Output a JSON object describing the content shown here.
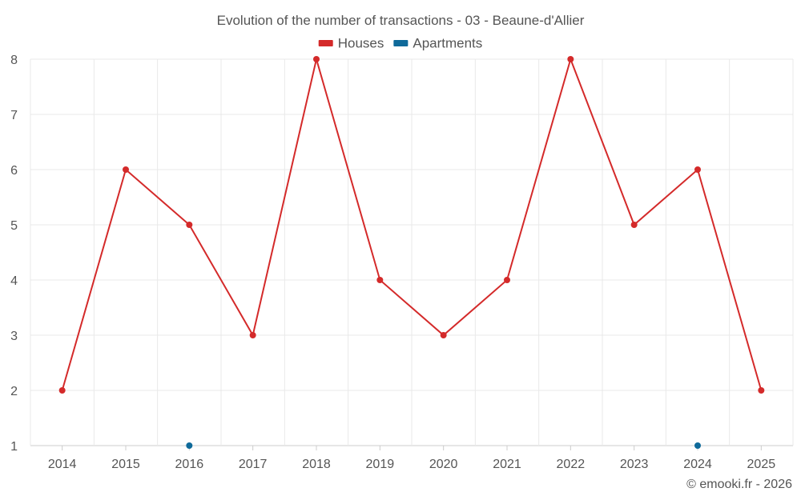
{
  "chart_data": {
    "type": "line",
    "title": "Evolution of the number of transactions - 03 - Beaune-d'Allier",
    "categories": [
      "2014",
      "2015",
      "2016",
      "2017",
      "2018",
      "2019",
      "2020",
      "2021",
      "2022",
      "2023",
      "2024",
      "2025"
    ],
    "series": [
      {
        "name": "Houses",
        "color": "#d42a2a",
        "values": [
          2,
          6,
          5,
          3,
          8,
          4,
          3,
          4,
          8,
          5,
          6,
          2
        ]
      },
      {
        "name": "Apartments",
        "color": "#0f6a9a",
        "values": [
          null,
          null,
          1,
          null,
          null,
          null,
          null,
          null,
          null,
          null,
          1,
          null
        ]
      }
    ],
    "ylim": [
      1,
      8
    ],
    "yticks": [
      1,
      2,
      3,
      4,
      5,
      6,
      7,
      8
    ],
    "grid": true,
    "legend_position": "top-center",
    "xlabel": "",
    "ylabel": ""
  },
  "footer": {
    "credit": "© emooki.fr - 2026"
  },
  "colors": {
    "grid": "#e9e9e9",
    "axis": "#cccccc",
    "text": "#555555"
  }
}
